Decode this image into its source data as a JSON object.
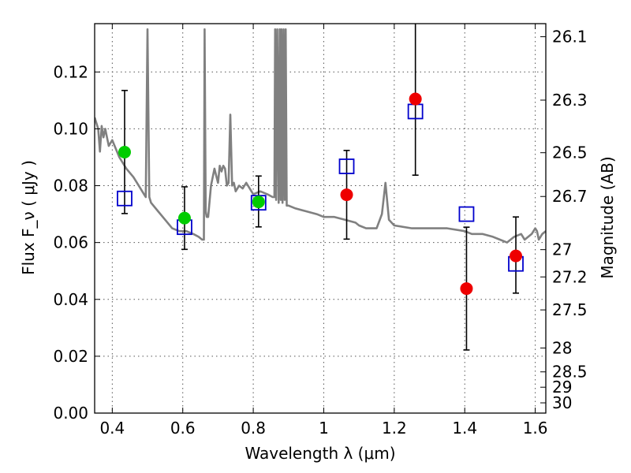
{
  "chart_data": {
    "type": "scatter",
    "xlabel": "Wavelength  λ (μm)",
    "ylabel": "Flux  F_ν  ( μJy )",
    "ylabel_right": "Magnitude (AB)",
    "xlim": [
      0.35,
      1.63
    ],
    "ylim": [
      0.0,
      0.137
    ],
    "grid": true,
    "x_ticks": [
      0.4,
      0.6,
      0.8,
      1.0,
      1.2,
      1.4,
      1.6
    ],
    "x_tick_labels": [
      "0.4",
      "0.6",
      "0.8",
      "1",
      "1.2",
      "1.4",
      "1.6"
    ],
    "y_ticks": [
      0.0,
      0.02,
      0.04,
      0.06,
      0.08,
      0.1,
      0.12
    ],
    "y_tick_labels": [
      "0.00",
      "0.02",
      "0.04",
      "0.06",
      "0.08",
      "0.10",
      "0.12"
    ],
    "mag_ticks": [
      {
        "label": "26.1",
        "flux": 0.1324
      },
      {
        "label": "26.3",
        "flux": 0.1101
      },
      {
        "label": "26.5",
        "flux": 0.0916
      },
      {
        "label": "26.7",
        "flux": 0.0762
      },
      {
        "label": "27",
        "flux": 0.0575
      },
      {
        "label": "27.2",
        "flux": 0.0479
      },
      {
        "label": "27.5",
        "flux": 0.0363
      },
      {
        "label": "28",
        "flux": 0.0229
      },
      {
        "label": "28.5",
        "flux": 0.0145
      },
      {
        "label": "29",
        "flux": 0.0091
      },
      {
        "label": "30",
        "flux": 0.0036
      }
    ],
    "series": [
      {
        "style": "green-filled-circle-with-errorbar",
        "color": "#00cc00",
        "points": [
          {
            "x": 0.435,
            "y": 0.0918,
            "err_lo": 0.0216,
            "err_hi": 0.0217
          },
          {
            "x": 0.605,
            "y": 0.0686,
            "err_lo": 0.011,
            "err_hi": 0.011
          },
          {
            "x": 0.815,
            "y": 0.0743,
            "err_lo": 0.0088,
            "err_hi": 0.0091
          }
        ]
      },
      {
        "style": "red-filled-circle-with-errorbar",
        "color": "#ee0000",
        "points": [
          {
            "x": 1.065,
            "y": 0.0768,
            "err_lo": 0.0156,
            "err_hi": 0.0156
          },
          {
            "x": 1.26,
            "y": 0.1105,
            "err_lo": 0.0268,
            "err_hi": 0.03
          },
          {
            "x": 1.405,
            "y": 0.0438,
            "err_lo": 0.0216,
            "err_hi": 0.0216
          },
          {
            "x": 1.545,
            "y": 0.0553,
            "err_lo": 0.0131,
            "err_hi": 0.0137
          }
        ]
      },
      {
        "style": "blue-open-square",
        "color": "#0000cc",
        "points": [
          {
            "x": 0.435,
            "y": 0.0755
          },
          {
            "x": 0.605,
            "y": 0.0654
          },
          {
            "x": 0.815,
            "y": 0.074
          },
          {
            "x": 1.065,
            "y": 0.0868
          },
          {
            "x": 1.26,
            "y": 0.1061
          },
          {
            "x": 1.405,
            "y": 0.07
          },
          {
            "x": 1.545,
            "y": 0.0525
          }
        ]
      },
      {
        "style": "gray-line-spectrum",
        "color": "#808080",
        "x": [
          0.35,
          0.36,
          0.365,
          0.37,
          0.375,
          0.38,
          0.39,
          0.4,
          0.42,
          0.44,
          0.46,
          0.48,
          0.49,
          0.495,
          0.5,
          0.505,
          0.51,
          0.53,
          0.55,
          0.57,
          0.59,
          0.61,
          0.63,
          0.645,
          0.655,
          0.66,
          0.662,
          0.665,
          0.668,
          0.672,
          0.68,
          0.69,
          0.7,
          0.705,
          0.71,
          0.715,
          0.72,
          0.725,
          0.73,
          0.735,
          0.74,
          0.745,
          0.75,
          0.76,
          0.77,
          0.775,
          0.78,
          0.785,
          0.79,
          0.8,
          0.82,
          0.84,
          0.855,
          0.86,
          0.862,
          0.865,
          0.868,
          0.872,
          0.875,
          0.878,
          0.88,
          0.883,
          0.886,
          0.889,
          0.892,
          0.895,
          0.9,
          0.92,
          0.95,
          0.98,
          1.0,
          1.03,
          1.06,
          1.09,
          1.1,
          1.12,
          1.14,
          1.15,
          1.165,
          1.175,
          1.185,
          1.2,
          1.25,
          1.3,
          1.35,
          1.4,
          1.42,
          1.45,
          1.48,
          1.5,
          1.52,
          1.54,
          1.56,
          1.57,
          1.59,
          1.6,
          1.605,
          1.61,
          1.62,
          1.63
        ],
        "y": [
          0.104,
          0.1,
          0.092,
          0.101,
          0.097,
          0.1,
          0.094,
          0.096,
          0.09,
          0.086,
          0.083,
          0.079,
          0.077,
          0.076,
          0.135,
          0.076,
          0.074,
          0.071,
          0.068,
          0.065,
          0.064,
          0.064,
          0.063,
          0.062,
          0.061,
          0.061,
          0.135,
          0.071,
          0.069,
          0.069,
          0.08,
          0.086,
          0.081,
          0.087,
          0.085,
          0.087,
          0.086,
          0.08,
          0.081,
          0.105,
          0.08,
          0.081,
          0.078,
          0.08,
          0.079,
          0.08,
          0.081,
          0.08,
          0.079,
          0.077,
          0.078,
          0.077,
          0.076,
          0.076,
          0.135,
          0.075,
          0.135,
          0.074,
          0.135,
          0.075,
          0.135,
          0.074,
          0.135,
          0.075,
          0.135,
          0.073,
          0.073,
          0.072,
          0.071,
          0.07,
          0.069,
          0.069,
          0.068,
          0.067,
          0.066,
          0.065,
          0.065,
          0.065,
          0.07,
          0.081,
          0.068,
          0.066,
          0.065,
          0.065,
          0.065,
          0.064,
          0.063,
          0.063,
          0.062,
          0.061,
          0.06,
          0.062,
          0.063,
          0.061,
          0.063,
          0.065,
          0.064,
          0.061,
          0.063,
          0.064
        ]
      }
    ]
  }
}
